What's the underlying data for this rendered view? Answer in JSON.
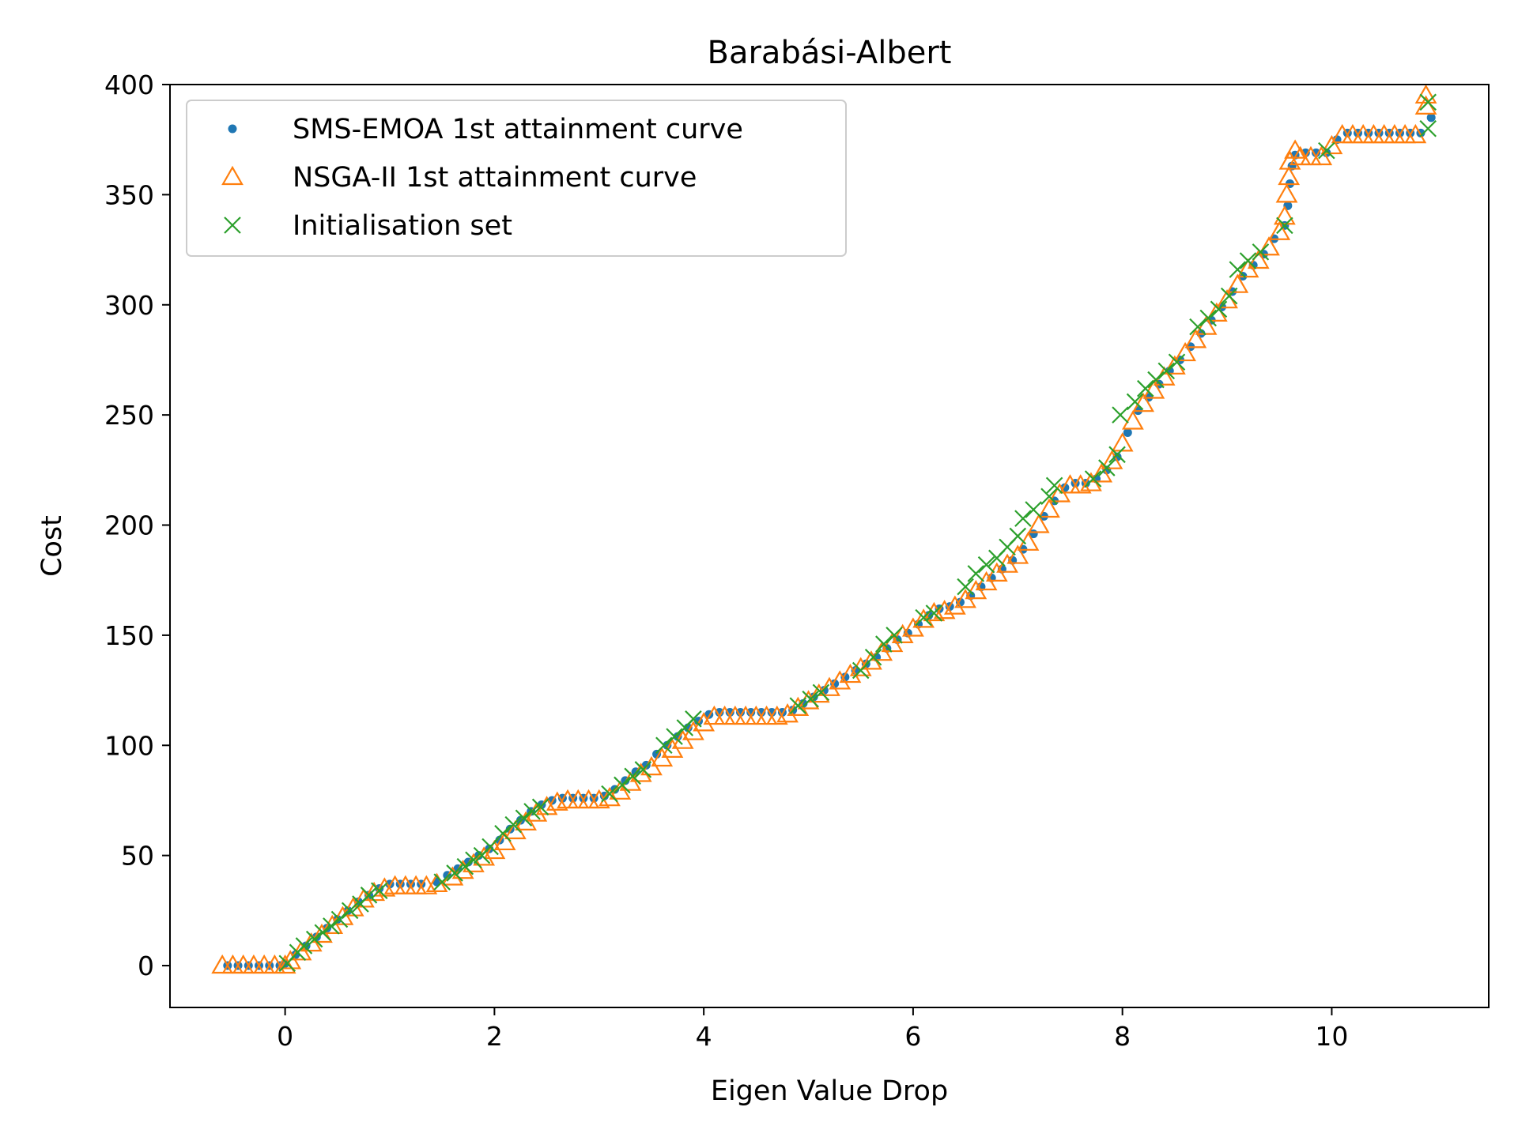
{
  "chart_data": {
    "type": "scatter",
    "title": "Barabási-Albert",
    "xlabel": "Eigen Value Drop",
    "ylabel": "Cost",
    "xlim": [
      -1.1,
      11.5
    ],
    "ylim": [
      -19,
      400
    ],
    "xticks": [
      0,
      2,
      4,
      6,
      8,
      10
    ],
    "yticks": [
      0,
      50,
      100,
      150,
      200,
      250,
      300,
      350,
      400
    ],
    "grid": false,
    "legend_position": "top-left",
    "series": [
      {
        "name": "SMS-EMOA 1st attainment curve",
        "marker": "dot",
        "color": "#1f77b4",
        "points": [
          [
            -0.55,
            0
          ],
          [
            -0.45,
            0
          ],
          [
            -0.35,
            0
          ],
          [
            -0.25,
            0
          ],
          [
            -0.15,
            0
          ],
          [
            -0.05,
            0
          ],
          [
            0,
            1
          ],
          [
            0.1,
            5
          ],
          [
            0.2,
            9
          ],
          [
            0.3,
            13
          ],
          [
            0.4,
            17
          ],
          [
            0.5,
            21
          ],
          [
            0.6,
            25
          ],
          [
            0.7,
            29
          ],
          [
            0.8,
            32
          ],
          [
            0.9,
            35
          ],
          [
            1.0,
            37
          ],
          [
            1.1,
            37
          ],
          [
            1.2,
            37
          ],
          [
            1.3,
            37
          ],
          [
            1.45,
            38
          ],
          [
            1.55,
            41
          ],
          [
            1.65,
            44
          ],
          [
            1.75,
            47
          ],
          [
            1.85,
            50
          ],
          [
            1.95,
            53
          ],
          [
            2.05,
            57
          ],
          [
            2.15,
            62
          ],
          [
            2.25,
            66
          ],
          [
            2.35,
            70
          ],
          [
            2.45,
            73
          ],
          [
            2.55,
            75
          ],
          [
            2.65,
            76
          ],
          [
            2.75,
            76
          ],
          [
            2.85,
            76
          ],
          [
            2.95,
            76
          ],
          [
            3.05,
            77
          ],
          [
            3.15,
            80
          ],
          [
            3.25,
            84
          ],
          [
            3.35,
            88
          ],
          [
            3.45,
            91
          ],
          [
            3.55,
            96
          ],
          [
            3.65,
            100
          ],
          [
            3.75,
            104
          ],
          [
            3.85,
            108
          ],
          [
            3.95,
            111
          ],
          [
            4.05,
            114
          ],
          [
            4.15,
            115
          ],
          [
            4.25,
            115
          ],
          [
            4.35,
            115
          ],
          [
            4.45,
            115
          ],
          [
            4.55,
            115
          ],
          [
            4.65,
            115
          ],
          [
            4.75,
            115
          ],
          [
            4.85,
            116
          ],
          [
            4.95,
            119
          ],
          [
            5.05,
            122
          ],
          [
            5.15,
            125
          ],
          [
            5.25,
            128
          ],
          [
            5.35,
            131
          ],
          [
            5.45,
            134
          ],
          [
            5.55,
            137
          ],
          [
            5.65,
            140
          ],
          [
            5.75,
            144
          ],
          [
            5.85,
            148
          ],
          [
            5.95,
            151
          ],
          [
            6.05,
            155
          ],
          [
            6.15,
            159
          ],
          [
            6.25,
            162
          ],
          [
            6.35,
            163
          ],
          [
            6.45,
            165
          ],
          [
            6.55,
            168
          ],
          [
            6.65,
            172
          ],
          [
            6.75,
            176
          ],
          [
            6.85,
            180
          ],
          [
            6.95,
            184
          ],
          [
            7.05,
            189
          ],
          [
            7.15,
            196
          ],
          [
            7.25,
            204
          ],
          [
            7.35,
            211
          ],
          [
            7.45,
            217
          ],
          [
            7.55,
            219
          ],
          [
            7.65,
            219
          ],
          [
            7.75,
            221
          ],
          [
            7.85,
            225
          ],
          [
            7.95,
            231
          ],
          [
            8.05,
            242
          ],
          [
            8.15,
            252
          ],
          [
            8.25,
            258
          ],
          [
            8.35,
            264
          ],
          [
            8.45,
            270
          ],
          [
            8.55,
            275
          ],
          [
            8.65,
            281
          ],
          [
            8.75,
            287
          ],
          [
            8.85,
            293
          ],
          [
            8.95,
            299
          ],
          [
            9.05,
            306
          ],
          [
            9.15,
            313
          ],
          [
            9.25,
            318
          ],
          [
            9.35,
            323
          ],
          [
            9.45,
            330
          ],
          [
            9.55,
            336
          ],
          [
            9.58,
            345
          ],
          [
            9.6,
            355
          ],
          [
            9.62,
            363
          ],
          [
            9.65,
            368
          ],
          [
            9.75,
            369
          ],
          [
            9.85,
            369
          ],
          [
            9.95,
            369
          ],
          [
            10.05,
            375
          ],
          [
            10.15,
            378
          ],
          [
            10.25,
            378
          ],
          [
            10.35,
            378
          ],
          [
            10.45,
            378
          ],
          [
            10.55,
            378
          ],
          [
            10.65,
            378
          ],
          [
            10.75,
            378
          ],
          [
            10.85,
            378
          ],
          [
            10.95,
            385
          ]
        ]
      },
      {
        "name": "NSGA-II 1st attainment curve",
        "marker": "triangle",
        "color": "#ff7f0e",
        "points": [
          [
            -0.6,
            0
          ],
          [
            -0.5,
            0
          ],
          [
            -0.4,
            0
          ],
          [
            -0.3,
            0
          ],
          [
            -0.2,
            0
          ],
          [
            -0.1,
            0
          ],
          [
            0,
            0
          ],
          [
            0.05,
            2
          ],
          [
            0.15,
            6
          ],
          [
            0.25,
            10
          ],
          [
            0.35,
            14
          ],
          [
            0.45,
            18
          ],
          [
            0.55,
            22
          ],
          [
            0.65,
            26
          ],
          [
            0.75,
            30
          ],
          [
            0.85,
            33
          ],
          [
            0.95,
            35
          ],
          [
            1.05,
            36
          ],
          [
            1.15,
            36
          ],
          [
            1.25,
            36
          ],
          [
            1.35,
            36
          ],
          [
            1.45,
            37
          ],
          [
            1.6,
            40
          ],
          [
            1.7,
            43
          ],
          [
            1.8,
            46
          ],
          [
            1.9,
            49
          ],
          [
            2.0,
            52
          ],
          [
            2.1,
            56
          ],
          [
            2.2,
            61
          ],
          [
            2.3,
            65
          ],
          [
            2.4,
            69
          ],
          [
            2.5,
            72
          ],
          [
            2.6,
            74
          ],
          [
            2.7,
            75
          ],
          [
            2.8,
            75
          ],
          [
            2.9,
            75
          ],
          [
            3.0,
            75
          ],
          [
            3.1,
            76
          ],
          [
            3.2,
            79
          ],
          [
            3.3,
            83
          ],
          [
            3.4,
            87
          ],
          [
            3.5,
            90
          ],
          [
            3.6,
            94
          ],
          [
            3.7,
            98
          ],
          [
            3.8,
            102
          ],
          [
            3.9,
            106
          ],
          [
            4.0,
            110
          ],
          [
            4.1,
            113
          ],
          [
            4.2,
            113
          ],
          [
            4.3,
            113
          ],
          [
            4.4,
            113
          ],
          [
            4.5,
            113
          ],
          [
            4.6,
            113
          ],
          [
            4.7,
            113
          ],
          [
            4.8,
            114
          ],
          [
            4.9,
            117
          ],
          [
            5.0,
            120
          ],
          [
            5.1,
            123
          ],
          [
            5.2,
            126
          ],
          [
            5.3,
            129
          ],
          [
            5.4,
            132
          ],
          [
            5.5,
            135
          ],
          [
            5.6,
            138
          ],
          [
            5.7,
            142
          ],
          [
            5.8,
            146
          ],
          [
            5.9,
            150
          ],
          [
            6.0,
            153
          ],
          [
            6.1,
            157
          ],
          [
            6.2,
            160
          ],
          [
            6.3,
            161
          ],
          [
            6.4,
            163
          ],
          [
            6.5,
            166
          ],
          [
            6.6,
            170
          ],
          [
            6.7,
            174
          ],
          [
            6.8,
            178
          ],
          [
            6.9,
            182
          ],
          [
            7.0,
            186
          ],
          [
            7.1,
            192
          ],
          [
            7.2,
            200
          ],
          [
            7.3,
            207
          ],
          [
            7.4,
            214
          ],
          [
            7.5,
            218
          ],
          [
            7.6,
            218
          ],
          [
            7.7,
            219
          ],
          [
            7.8,
            223
          ],
          [
            7.9,
            229
          ],
          [
            8.0,
            237
          ],
          [
            8.1,
            247
          ],
          [
            8.2,
            255
          ],
          [
            8.3,
            261
          ],
          [
            8.4,
            267
          ],
          [
            8.5,
            272
          ],
          [
            8.6,
            278
          ],
          [
            8.7,
            284
          ],
          [
            8.8,
            290
          ],
          [
            8.9,
            296
          ],
          [
            9.0,
            302
          ],
          [
            9.1,
            309
          ],
          [
            9.2,
            316
          ],
          [
            9.3,
            320
          ],
          [
            9.4,
            326
          ],
          [
            9.5,
            333
          ],
          [
            9.55,
            340
          ],
          [
            9.57,
            350
          ],
          [
            9.59,
            358
          ],
          [
            9.6,
            365
          ],
          [
            9.65,
            370
          ],
          [
            9.7,
            367
          ],
          [
            9.8,
            367
          ],
          [
            9.9,
            367
          ],
          [
            10.0,
            372
          ],
          [
            10.1,
            377
          ],
          [
            10.2,
            377
          ],
          [
            10.3,
            377
          ],
          [
            10.4,
            377
          ],
          [
            10.5,
            377
          ],
          [
            10.6,
            377
          ],
          [
            10.7,
            377
          ],
          [
            10.8,
            377
          ],
          [
            10.9,
            390
          ],
          [
            10.9,
            395
          ]
        ]
      },
      {
        "name": "Initialisation set",
        "marker": "x",
        "color": "#2ca02c",
        "points": [
          [
            0.02,
            1
          ],
          [
            0.12,
            6
          ],
          [
            0.18,
            9
          ],
          [
            0.28,
            12
          ],
          [
            0.36,
            15
          ],
          [
            0.44,
            18
          ],
          [
            0.52,
            21
          ],
          [
            0.62,
            25
          ],
          [
            0.72,
            28
          ],
          [
            0.8,
            32
          ],
          [
            0.9,
            34
          ],
          [
            1.5,
            38
          ],
          [
            1.62,
            42
          ],
          [
            1.72,
            45
          ],
          [
            1.8,
            48
          ],
          [
            1.88,
            50
          ],
          [
            1.96,
            54
          ],
          [
            2.08,
            60
          ],
          [
            2.18,
            64
          ],
          [
            2.28,
            67
          ],
          [
            2.36,
            70
          ],
          [
            2.44,
            72
          ],
          [
            3.1,
            78
          ],
          [
            3.22,
            82
          ],
          [
            3.32,
            86
          ],
          [
            3.42,
            89
          ],
          [
            3.62,
            100
          ],
          [
            3.72,
            104
          ],
          [
            3.82,
            108
          ],
          [
            3.9,
            112
          ],
          [
            4.9,
            118
          ],
          [
            5.02,
            121
          ],
          [
            5.12,
            124
          ],
          [
            5.5,
            134
          ],
          [
            5.62,
            140
          ],
          [
            5.72,
            146
          ],
          [
            5.82,
            150
          ],
          [
            6.1,
            158
          ],
          [
            6.2,
            160
          ],
          [
            6.5,
            172
          ],
          [
            6.6,
            178
          ],
          [
            6.7,
            182
          ],
          [
            6.8,
            185
          ],
          [
            6.9,
            190
          ],
          [
            7.0,
            195
          ],
          [
            7.05,
            203
          ],
          [
            7.15,
            207
          ],
          [
            7.3,
            213
          ],
          [
            7.35,
            218
          ],
          [
            7.72,
            221
          ],
          [
            7.85,
            226
          ],
          [
            7.95,
            232
          ],
          [
            7.98,
            250
          ],
          [
            8.12,
            256
          ],
          [
            8.22,
            262
          ],
          [
            8.32,
            266
          ],
          [
            8.42,
            270
          ],
          [
            8.52,
            274
          ],
          [
            8.72,
            290
          ],
          [
            8.82,
            294
          ],
          [
            8.92,
            298
          ],
          [
            9.02,
            304
          ],
          [
            9.1,
            316
          ],
          [
            9.2,
            320
          ],
          [
            9.32,
            324
          ],
          [
            9.55,
            336
          ],
          [
            9.95,
            370
          ],
          [
            10.92,
            380
          ],
          [
            10.92,
            392
          ]
        ]
      }
    ]
  }
}
